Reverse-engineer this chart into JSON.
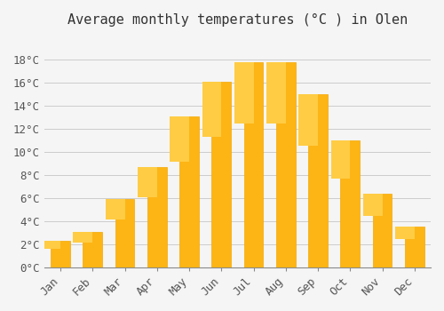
{
  "title": "Average monthly temperatures (°C ) in Olen",
  "months": [
    "Jan",
    "Feb",
    "Mar",
    "Apr",
    "May",
    "Jun",
    "Jul",
    "Aug",
    "Sep",
    "Oct",
    "Nov",
    "Dec"
  ],
  "values": [
    2.3,
    3.1,
    5.9,
    8.7,
    13.1,
    16.1,
    17.8,
    17.8,
    15.0,
    11.0,
    6.4,
    3.5
  ],
  "bar_color_face": "#FDB515",
  "bar_color_edge": "#F5A800",
  "bar_gradient_top": "#FFCC44",
  "ylim": [
    0,
    20
  ],
  "yticks": [
    0,
    2,
    4,
    6,
    8,
    10,
    12,
    14,
    16,
    18
  ],
  "background_color": "#F5F5F5",
  "grid_color": "#CCCCCC",
  "title_fontsize": 11,
  "tick_fontsize": 9,
  "font_family": "monospace"
}
